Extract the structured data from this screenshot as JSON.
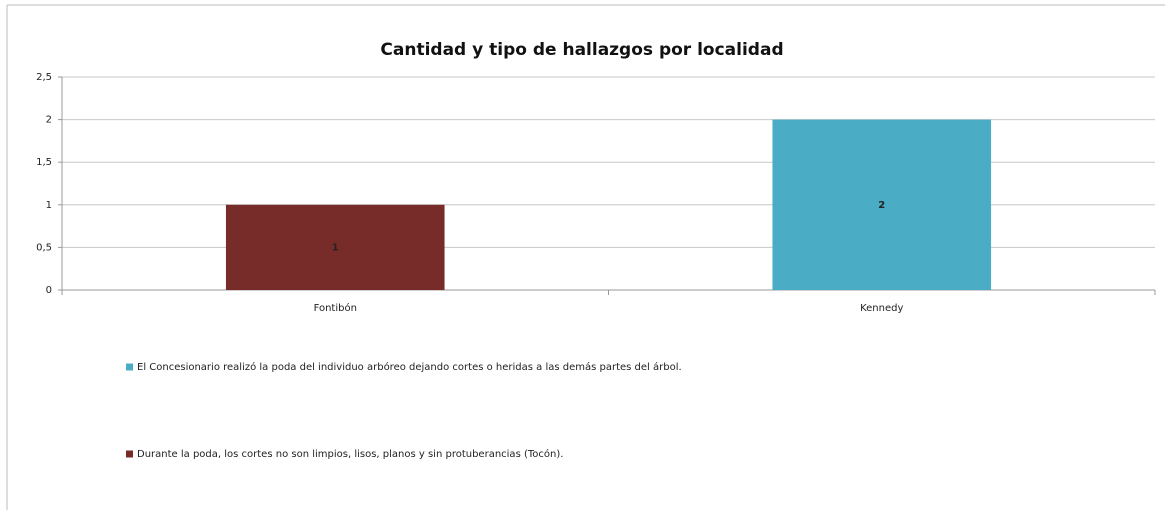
{
  "chart_data": {
    "type": "bar",
    "stacked": true,
    "title": "Cantidad y tipo de hallazgos por localidad",
    "categories": [
      "Fontibón",
      "Kennedy"
    ],
    "series": [
      {
        "name": "El Concesionario realizó la poda del individuo arbóreo dejando cortes o heridas a las demás partes del árbol.",
        "color": "#4bacc6",
        "values": [
          null,
          2
        ]
      },
      {
        "name": "Durante la poda, los cortes no son limpios, lisos, planos y sin protuberancias (Tocón).",
        "color": "#772c2a",
        "values": [
          1,
          null
        ]
      }
    ],
    "ylim": [
      0,
      2.5
    ],
    "yticks": [
      0,
      {
        "value": 0.5,
        "label": "0,5"
      },
      1,
      {
        "value": 1.5,
        "label": "1,5"
      },
      2,
      {
        "value": 2.5,
        "label": "2,5"
      }
    ],
    "grid": true
  }
}
